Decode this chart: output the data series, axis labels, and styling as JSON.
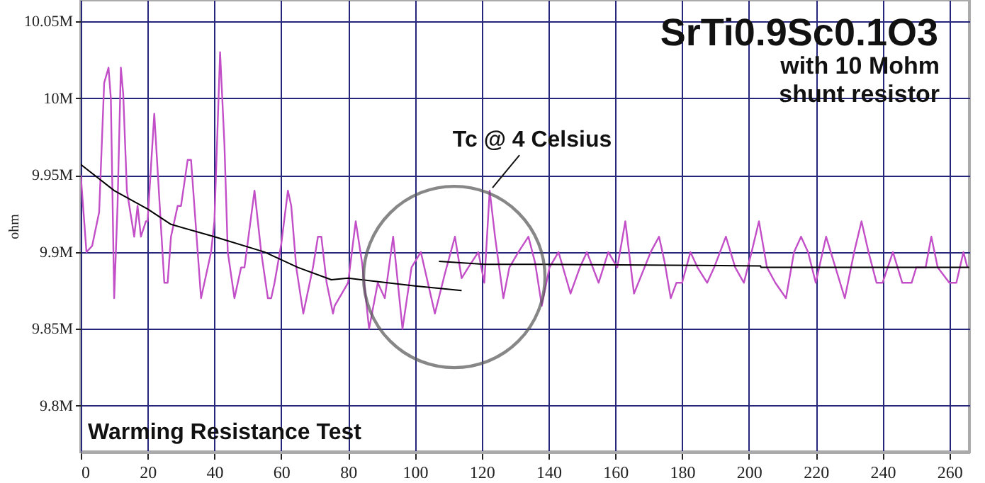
{
  "chart_data": {
    "type": "line",
    "title": "SrTi0.9Sc0.1O3",
    "subtitle": "with 10 Mohm\nshunt resistor",
    "ylabel": "ohm",
    "xlim": [
      0,
      266
    ],
    "xticks": [
      0,
      20,
      40,
      60,
      80,
      100,
      120,
      140,
      160,
      180,
      200,
      220,
      240,
      260
    ],
    "ylim": [
      9770000,
      10064000
    ],
    "yticks": [
      {
        "value": 9800000,
        "label": "9.8M"
      },
      {
        "value": 9850000,
        "label": "9.85M"
      },
      {
        "value": 9900000,
        "label": "9.9M"
      },
      {
        "value": 9950000,
        "label": "9.95M"
      },
      {
        "value": 10000000,
        "label": "10M"
      },
      {
        "value": 10050000,
        "label": "10.05M"
      }
    ],
    "grid": true,
    "series": [
      {
        "color": "#c34fc8",
        "x": [
          0,
          1.7,
          3.4,
          5.5,
          7,
          8.3,
          9,
          10,
          11,
          12,
          12.7,
          13.8,
          16,
          17,
          18,
          19.5,
          20,
          22,
          25,
          26,
          27,
          29,
          30,
          32,
          33,
          36,
          39,
          40,
          41.7,
          43,
          44,
          46,
          48,
          49,
          52,
          54,
          56,
          57,
          58,
          60,
          62,
          63,
          64.5,
          66.6,
          69.5,
          71,
          72,
          73.6,
          75.5,
          76,
          80,
          82.3,
          84.2,
          86.3,
          88.9,
          91,
          93.5,
          96.3,
          99,
          101.8,
          106,
          109,
          112,
          114,
          116,
          119,
          120.8,
          122.4,
          124,
          126.5,
          128.3,
          131,
          134,
          136,
          138,
          140.3,
          143,
          146.6,
          149.4,
          151.5,
          155,
          157.9,
          160.6,
          163,
          165.6,
          170.6,
          173.1,
          174.8,
          176.6,
          178.3,
          180,
          182.5,
          184.6,
          187.5,
          189.6,
          193.1,
          195.9,
          198.5,
          200.8,
          203,
          205.4,
          207.9,
          211.1,
          213.5,
          215.6,
          217.7,
          220,
          223.1,
          225.9,
          228.7,
          231.5,
          233.7,
          235.8,
          238.2,
          240,
          243.1,
          245.9,
          248.7,
          250.1,
          252.9,
          254.6,
          256.5,
          260,
          262.1,
          264.2,
          265.4
        ],
        "values": [
          9950000,
          9900000,
          9904000,
          9926000,
          10010000,
          10020000,
          10000000,
          9870000,
          9930000,
          10020000,
          10003000,
          9940000,
          9910000,
          9930000,
          9910000,
          9920000,
          9920000,
          9990000,
          9880000,
          9880000,
          9910000,
          9930000,
          9930000,
          9960000,
          9960000,
          9870000,
          9900000,
          9920000,
          10030000,
          9970000,
          9900000,
          9870000,
          9890000,
          9890000,
          9940000,
          9900000,
          9870000,
          9870000,
          9880000,
          9905000,
          9940000,
          9930000,
          9890000,
          9860000,
          9890000,
          9910000,
          9910000,
          9880000,
          9860000,
          9865000,
          9880000,
          9920000,
          9893000,
          9850000,
          9880000,
          9870000,
          9910000,
          9850000,
          9890000,
          9900000,
          9860000,
          9886000,
          9910000,
          9883000,
          9890000,
          9900000,
          9880000,
          9940000,
          9910000,
          9870000,
          9890000,
          9900000,
          9910000,
          9893000,
          9865000,
          9890000,
          9900000,
          9873000,
          9890000,
          9900000,
          9880000,
          9900000,
          9890000,
          9920000,
          9873000,
          9900000,
          9910000,
          9893000,
          9870000,
          9880000,
          9880000,
          9900000,
          9890000,
          9880000,
          9890000,
          9910000,
          9890000,
          9880000,
          9900000,
          9920000,
          9890000,
          9880000,
          9870000,
          9900000,
          9910000,
          9900000,
          9880000,
          9910000,
          9890000,
          9870000,
          9900000,
          9920000,
          9900000,
          9880000,
          9880000,
          9900000,
          9880000,
          9880000,
          9890000,
          9890000,
          9910000,
          9890000,
          9880000,
          9880000,
          9900000,
          9890000
        ]
      },
      {
        "color": "#000000",
        "x": [
          0,
          10,
          20,
          27,
          40,
          55,
          65,
          75,
          80,
          100,
          114
        ],
        "values": [
          9957000,
          9940000,
          9928000,
          9918000,
          9910000,
          9900000,
          9890000,
          9882000,
          9883000,
          9878000,
          9875000
        ]
      },
      {
        "color": "#000000",
        "x": [
          107.2,
          121,
          138,
          203.5,
          203.6,
          266
        ],
        "values": [
          9894000,
          9892000,
          9892000,
          9891000,
          9890000,
          9890000
        ]
      }
    ],
    "annotations": [
      {
        "text": "Tc @ 4 Celsius",
        "x": 122.4,
        "y": 9940000
      },
      "Warming Resistance Test"
    ]
  }
}
